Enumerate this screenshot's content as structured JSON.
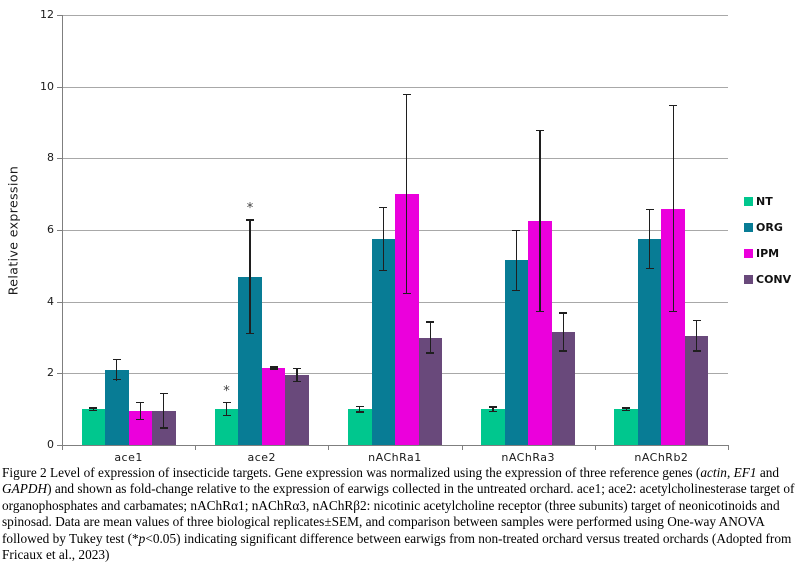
{
  "chart_data": {
    "type": "bar",
    "title": "",
    "ylabel": "Relative expression",
    "xlabel": "",
    "ylim": [
      0,
      12
    ],
    "y_ticks": [
      0,
      2,
      4,
      6,
      8,
      10,
      12
    ],
    "grid": true,
    "legend_position": "right",
    "categories": [
      "ace1",
      "ace2",
      "nAChRa1",
      "nAChRa3",
      "nAChRb2"
    ],
    "series": [
      {
        "name": "NT",
        "color": "#00C78E",
        "values": [
          1.0,
          1.0,
          1.0,
          1.0,
          1.0
        ],
        "errors": [
          0.05,
          0.2,
          0.1,
          0.08,
          0.05
        ],
        "sig": [
          false,
          true,
          false,
          false,
          false
        ]
      },
      {
        "name": "ORG",
        "color": "#087C95",
        "values": [
          2.1,
          4.7,
          5.75,
          5.15,
          5.75
        ],
        "errors": [
          0.3,
          1.6,
          0.9,
          0.85,
          0.85
        ],
        "sig": [
          false,
          true,
          false,
          false,
          false
        ]
      },
      {
        "name": "IPM",
        "color": "#EB00DC",
        "values": [
          0.95,
          2.15,
          7.0,
          6.25,
          6.6
        ],
        "errors": [
          0.25,
          0.05,
          2.8,
          2.55,
          2.9
        ],
        "sig": [
          false,
          false,
          false,
          false,
          false
        ]
      },
      {
        "name": "CONV",
        "color": "#69497B",
        "values": [
          0.95,
          1.95,
          3.0,
          3.15,
          3.05
        ],
        "errors": [
          0.5,
          0.2,
          0.45,
          0.55,
          0.45
        ],
        "sig": [
          false,
          false,
          false,
          false,
          false
        ]
      }
    ],
    "significance_marker": "*",
    "error_bar_color": "#1f1f1f",
    "gridline_color": "#a8a8a8",
    "axis_color": "#7f7f7f"
  },
  "caption": {
    "runs": [
      {
        "text": "Figure 2 Level of expression of insecticide targets. Gene expression was normalized using the expression of three reference genes ("
      },
      {
        "text": "actin",
        "italic": true
      },
      {
        "text": ", "
      },
      {
        "text": "EF1",
        "italic": true
      },
      {
        "text": " and "
      },
      {
        "text": "GAPDH",
        "italic": true
      },
      {
        "text": ") and shown as fold-change relative to the expression of earwigs collected in the untreated orchard. ace1; ace2: acetylcholinesterase target of organophosphates and carbamates; nAChRα1; nAChRα3, nAChRβ2: nicotinic acetylcholine receptor (three subunits) target of neonicotinoids and spinosad. Data are mean values of three biological replicates±SEM, and comparison between samples were performed using One-way ANOVA followed by Tukey test (*"
      },
      {
        "text": "p",
        "italic": true
      },
      {
        "text": "<0.05) indicating significant difference between earwigs from non-treated orchard versus treated orchards (Adopted from Fricaux et al., 2023)"
      }
    ]
  }
}
